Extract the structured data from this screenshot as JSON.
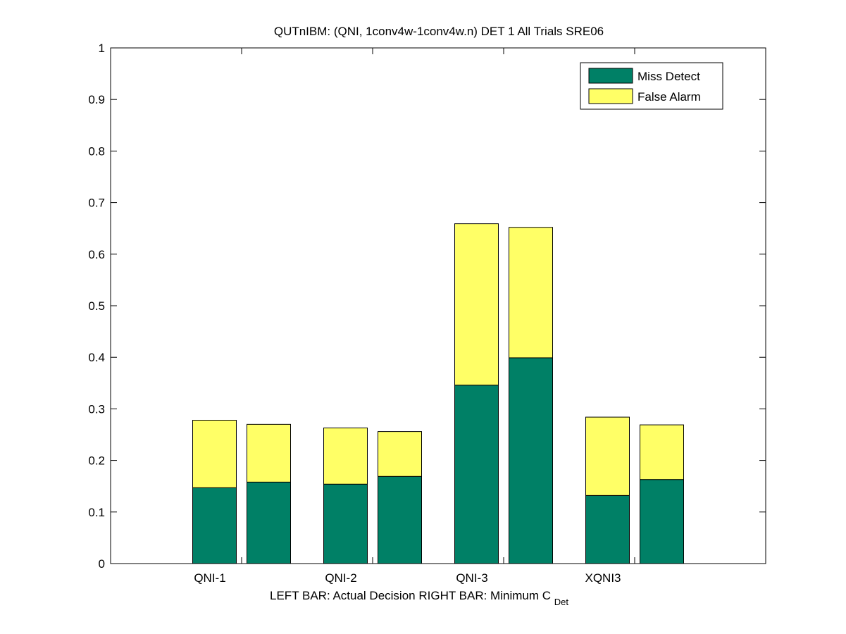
{
  "chart_data": {
    "type": "bar",
    "stacked": true,
    "title": "QUTnIBM: (QNI, 1conv4w-1conv4w.n) DET 1 All Trials SRE06",
    "xlabel": {
      "left": "LEFT BAR: Actual Decision",
      "right_main": "RIGHT BAR: Minimum C",
      "right_sub": "Det"
    },
    "ylabel": "",
    "ylim": [
      0,
      1
    ],
    "yticks": [
      "0",
      "0.1",
      "0.2",
      "0.3",
      "0.4",
      "0.5",
      "0.6",
      "0.7",
      "0.8",
      "0.9",
      "1"
    ],
    "categories": [
      "QNI-1",
      "QNI-2",
      "QNI-3",
      "XQNI3"
    ],
    "series": [
      {
        "name": "Miss Detect",
        "color": "#008066",
        "actual": [
          0.147,
          0.154,
          0.346,
          0.132
        ],
        "minimum": [
          0.158,
          0.169,
          0.399,
          0.163
        ]
      },
      {
        "name": "False Alarm",
        "color": "#FFFF66",
        "actual": [
          0.131,
          0.109,
          0.313,
          0.152
        ],
        "minimum": [
          0.112,
          0.087,
          0.253,
          0.106
        ]
      }
    ],
    "legend_position": "top-right",
    "grid": false
  }
}
